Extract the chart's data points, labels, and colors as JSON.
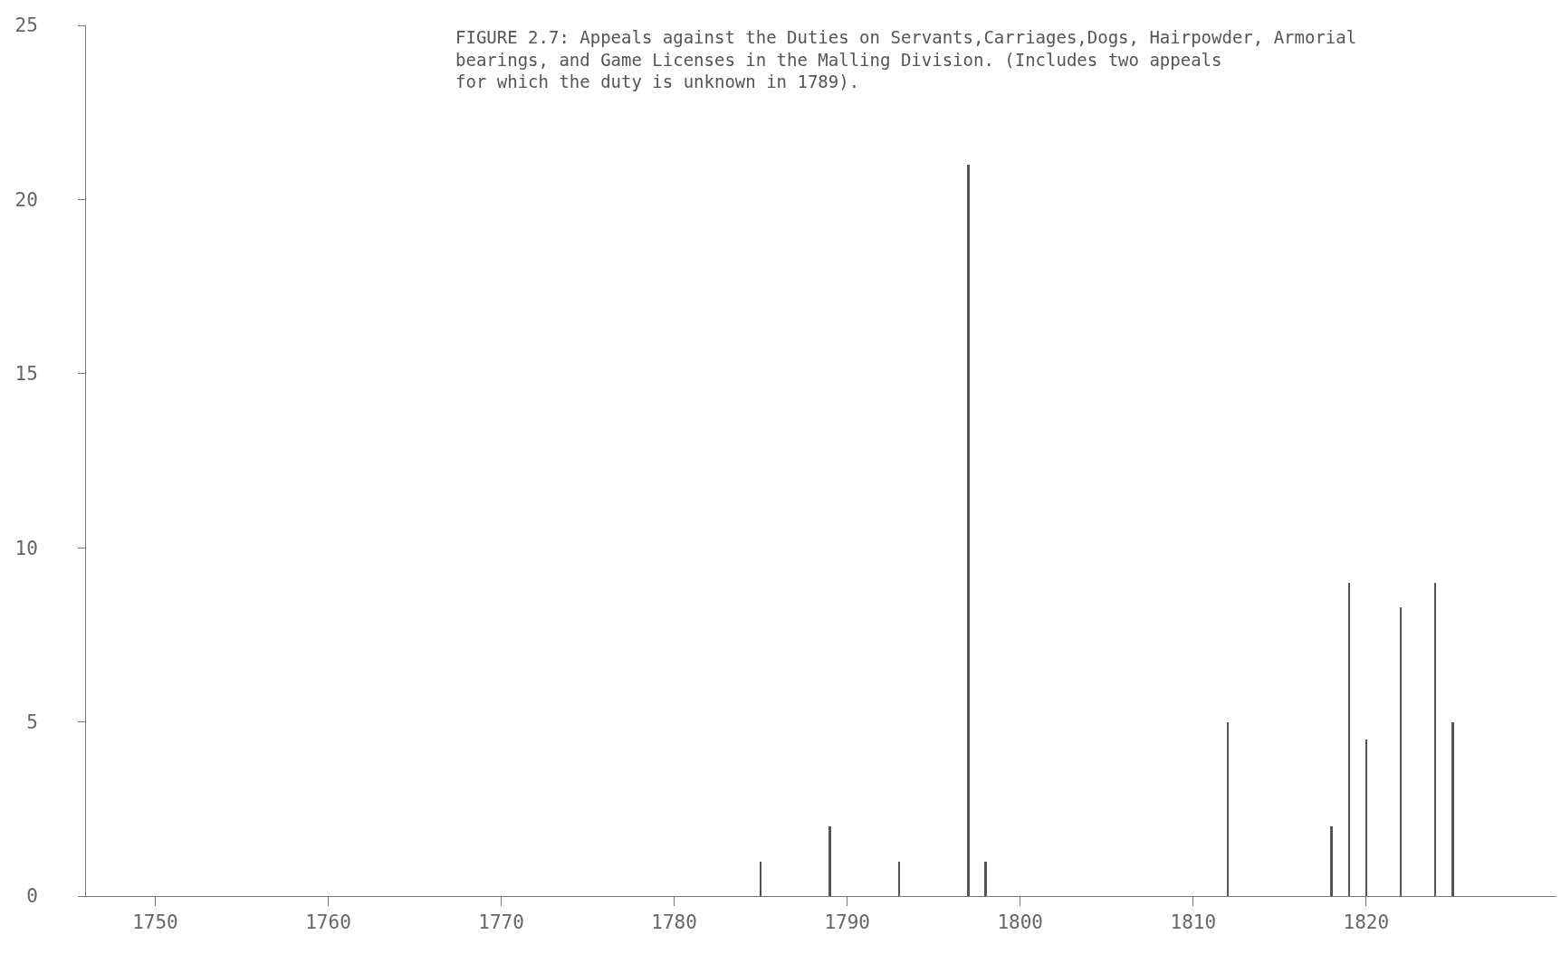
{
  "chart_data": {
    "type": "bar",
    "title": "FIGURE 2.7: Appeals against the Duties on Servants,Carriages,Dogs, Hairpowder, Armorial\nbearings, and Game Licenses in the Malling Division. (Includes two appeals\nfor which the duty is unknown in 1789).",
    "x": [
      1785,
      1789,
      1793,
      1797,
      1798,
      1812,
      1818,
      1819,
      1820,
      1822,
      1824,
      1825
    ],
    "values": [
      1,
      2,
      1,
      21,
      1,
      5,
      2,
      9,
      4.5,
      8.3,
      9,
      5
    ],
    "color": "#555555",
    "xlim": [
      1746,
      1831
    ],
    "xticks": [
      1750,
      1760,
      1770,
      1780,
      1790,
      1800,
      1810,
      1820
    ],
    "ylim": [
      0,
      25
    ],
    "yticks": [
      0,
      5,
      10,
      15,
      20,
      25
    ]
  }
}
